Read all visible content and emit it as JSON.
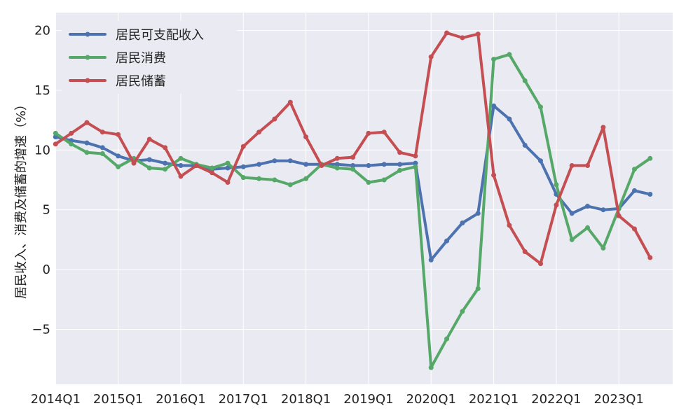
{
  "chart_data": {
    "type": "line",
    "title": "",
    "xlabel": "",
    "ylabel": "居民收入、消费及储蓄的增速（%）",
    "x_tick_labels": [
      "2014Q1",
      "2015Q1",
      "2016Q1",
      "2017Q1",
      "2018Q1",
      "2019Q1",
      "2020Q1",
      "2021Q1",
      "2022Q1",
      "2023Q1"
    ],
    "y_ticks": [
      -5,
      0,
      5,
      10,
      15,
      20
    ],
    "ylim": [
      -9.6,
      21.5
    ],
    "xlim": [
      "2013Q3",
      "2024Q2"
    ],
    "grid": true,
    "legend_position": "top-left",
    "categories": [
      "2014Q1",
      "2014Q2",
      "2014Q3",
      "2014Q4",
      "2015Q1",
      "2015Q2",
      "2015Q3",
      "2015Q4",
      "2016Q1",
      "2016Q2",
      "2016Q3",
      "2016Q4",
      "2017Q1",
      "2017Q2",
      "2017Q3",
      "2017Q4",
      "2018Q1",
      "2018Q2",
      "2018Q3",
      "2018Q4",
      "2019Q1",
      "2019Q2",
      "2019Q3",
      "2019Q4",
      "2020Q1",
      "2020Q2",
      "2020Q3",
      "2020Q4",
      "2021Q1",
      "2021Q2",
      "2021Q3",
      "2021Q4",
      "2022Q1",
      "2022Q2",
      "2022Q3",
      "2022Q4",
      "2023Q1",
      "2023Q2",
      "2023Q3"
    ],
    "series": [
      {
        "name": "居民可支配收入",
        "color": "#4c72b0",
        "values": [
          11.1,
          10.8,
          10.6,
          10.2,
          9.5,
          9.1,
          9.2,
          8.9,
          8.7,
          8.7,
          8.4,
          8.5,
          8.6,
          8.8,
          9.1,
          9.1,
          8.8,
          8.8,
          8.8,
          8.7,
          8.7,
          8.8,
          8.8,
          8.9,
          0.8,
          2.4,
          3.9,
          4.7,
          13.7,
          12.6,
          10.4,
          9.1,
          6.3,
          4.7,
          5.3,
          5.0,
          5.1,
          6.6,
          6.3
        ]
      },
      {
        "name": "居民消费",
        "color": "#55a868",
        "values": [
          11.4,
          10.5,
          9.8,
          9.7,
          8.6,
          9.3,
          8.5,
          8.4,
          9.3,
          8.8,
          8.5,
          8.9,
          7.7,
          7.6,
          7.5,
          7.1,
          7.6,
          8.8,
          8.5,
          8.4,
          7.3,
          7.5,
          8.3,
          8.6,
          -8.2,
          -5.8,
          -3.5,
          -1.6,
          17.6,
          18.0,
          15.8,
          13.6,
          7.1,
          2.5,
          3.5,
          1.8,
          5.1,
          8.4,
          9.3
        ]
      },
      {
        "name": "居民储蓄",
        "color": "#c44e52",
        "values": [
          10.5,
          11.4,
          12.3,
          11.5,
          11.3,
          8.9,
          10.9,
          10.2,
          7.8,
          8.7,
          8.1,
          7.3,
          10.3,
          11.5,
          12.6,
          14.0,
          11.1,
          8.7,
          9.3,
          9.4,
          11.4,
          11.5,
          9.8,
          9.5,
          17.8,
          19.8,
          19.4,
          19.7,
          7.9,
          3.7,
          1.5,
          0.5,
          5.4,
          8.7,
          8.7,
          11.9,
          4.5,
          3.4,
          1.0
        ]
      }
    ]
  }
}
